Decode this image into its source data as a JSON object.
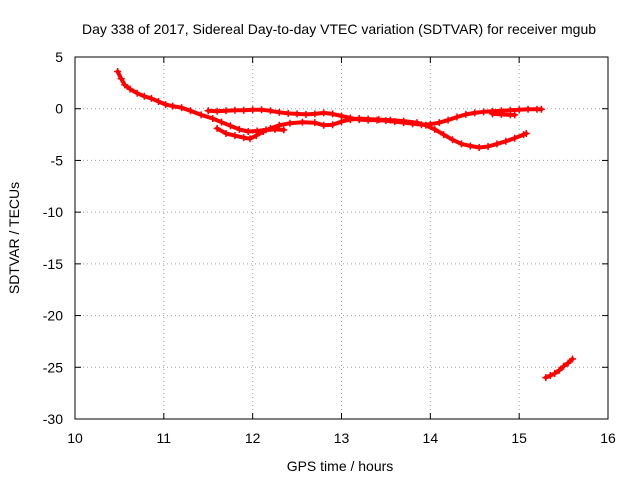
{
  "chart_data": {
    "type": "scatter",
    "title": "Day 338 of 2017, Sidereal Day-to-day VTEC variation (SDTVAR) for receiver mgub",
    "xlabel": "GPS time / hours",
    "ylabel": "SDTVAR / TECUs",
    "xlim": [
      10,
      16
    ],
    "ylim": [
      -30,
      5
    ],
    "xticks": [
      10,
      11,
      12,
      13,
      14,
      15,
      16
    ],
    "yticks": [
      5,
      0,
      -5,
      -10,
      -15,
      -20,
      -25,
      -30
    ],
    "xtick_labels": [
      "10",
      "11",
      "12",
      "13",
      "14",
      "15",
      "16"
    ],
    "ytick_labels": [
      "5",
      "0",
      "-5",
      "-10",
      "-15",
      "-20",
      "-25",
      "-30"
    ],
    "grid": true,
    "marker": "plus",
    "color": "#ff0000",
    "series": [
      {
        "points": [
          [
            10.48,
            3.6
          ],
          [
            10.52,
            2.9
          ],
          [
            10.56,
            2.3
          ],
          [
            10.62,
            1.9
          ],
          [
            10.7,
            1.5
          ],
          [
            10.78,
            1.2
          ],
          [
            10.86,
            1.0
          ],
          [
            10.94,
            0.7
          ],
          [
            11.02,
            0.4
          ],
          [
            11.1,
            0.25
          ],
          [
            11.2,
            0.1
          ],
          [
            11.3,
            -0.2
          ],
          [
            11.42,
            -0.6
          ],
          [
            11.55,
            -0.95
          ],
          [
            11.65,
            -1.3
          ],
          [
            11.75,
            -1.65
          ],
          [
            11.85,
            -2.0
          ],
          [
            11.95,
            -2.2
          ],
          [
            12.05,
            -2.15
          ],
          [
            12.15,
            -2.05
          ],
          [
            12.25,
            -2.0
          ],
          [
            12.35,
            -2.05
          ]
        ]
      },
      {
        "points": [
          [
            11.6,
            -1.9
          ],
          [
            11.7,
            -2.4
          ],
          [
            11.8,
            -2.6
          ],
          [
            11.9,
            -2.8
          ],
          [
            11.97,
            -2.9
          ],
          [
            12.04,
            -2.6
          ],
          [
            12.12,
            -2.2
          ],
          [
            12.2,
            -1.9
          ],
          [
            12.3,
            -1.6
          ],
          [
            12.42,
            -1.4
          ],
          [
            12.56,
            -1.3
          ],
          [
            12.7,
            -1.35
          ],
          [
            12.8,
            -1.6
          ],
          [
            12.9,
            -1.55
          ],
          [
            13.0,
            -1.25
          ],
          [
            13.1,
            -1.05
          ],
          [
            13.2,
            -0.95
          ],
          [
            13.3,
            -1.0
          ],
          [
            13.42,
            -1.05
          ],
          [
            13.55,
            -1.1
          ],
          [
            13.7,
            -1.2
          ],
          [
            13.85,
            -1.35
          ],
          [
            13.95,
            -1.6
          ],
          [
            14.05,
            -2.0
          ],
          [
            14.15,
            -2.5
          ],
          [
            14.25,
            -3.0
          ],
          [
            14.35,
            -3.4
          ],
          [
            14.45,
            -3.6
          ],
          [
            14.55,
            -3.75
          ],
          [
            14.65,
            -3.65
          ],
          [
            14.75,
            -3.4
          ],
          [
            14.85,
            -3.15
          ],
          [
            14.95,
            -2.85
          ],
          [
            15.05,
            -2.5
          ],
          [
            15.08,
            -2.4
          ]
        ]
      },
      {
        "points": [
          [
            11.5,
            -0.2
          ],
          [
            11.6,
            -0.25
          ],
          [
            11.7,
            -0.2
          ],
          [
            11.8,
            -0.15
          ],
          [
            11.9,
            -0.15
          ],
          [
            12.0,
            -0.1
          ],
          [
            12.1,
            -0.1
          ],
          [
            12.2,
            -0.2
          ],
          [
            12.3,
            -0.35
          ],
          [
            12.4,
            -0.45
          ],
          [
            12.5,
            -0.5
          ],
          [
            12.6,
            -0.55
          ],
          [
            12.7,
            -0.5
          ],
          [
            12.8,
            -0.4
          ],
          [
            12.9,
            -0.5
          ],
          [
            13.0,
            -0.7
          ],
          [
            13.1,
            -0.9
          ],
          [
            13.2,
            -1.05
          ],
          [
            13.3,
            -1.1
          ],
          [
            13.4,
            -1.1
          ],
          [
            13.5,
            -1.15
          ],
          [
            13.6,
            -1.25
          ],
          [
            13.7,
            -1.35
          ],
          [
            13.8,
            -1.45
          ],
          [
            13.9,
            -1.55
          ],
          [
            14.0,
            -1.5
          ],
          [
            14.1,
            -1.35
          ],
          [
            14.2,
            -1.1
          ],
          [
            14.3,
            -0.8
          ],
          [
            14.4,
            -0.55
          ],
          [
            14.5,
            -0.4
          ],
          [
            14.6,
            -0.3
          ],
          [
            14.7,
            -0.25
          ],
          [
            14.8,
            -0.2
          ],
          [
            14.9,
            -0.15
          ],
          [
            15.0,
            -0.1
          ],
          [
            15.1,
            -0.05
          ],
          [
            15.2,
            -0.05
          ],
          [
            15.25,
            -0.05
          ]
        ]
      },
      {
        "points": [
          [
            14.7,
            -0.5
          ],
          [
            14.8,
            -0.55
          ],
          [
            14.9,
            -0.6
          ],
          [
            14.95,
            -0.6
          ]
        ]
      },
      {
        "points": [
          [
            15.3,
            -26.0
          ],
          [
            15.35,
            -25.8
          ],
          [
            15.4,
            -25.6
          ],
          [
            15.45,
            -25.3
          ],
          [
            15.5,
            -24.9
          ],
          [
            15.55,
            -24.6
          ],
          [
            15.6,
            -24.2
          ]
        ]
      }
    ]
  }
}
